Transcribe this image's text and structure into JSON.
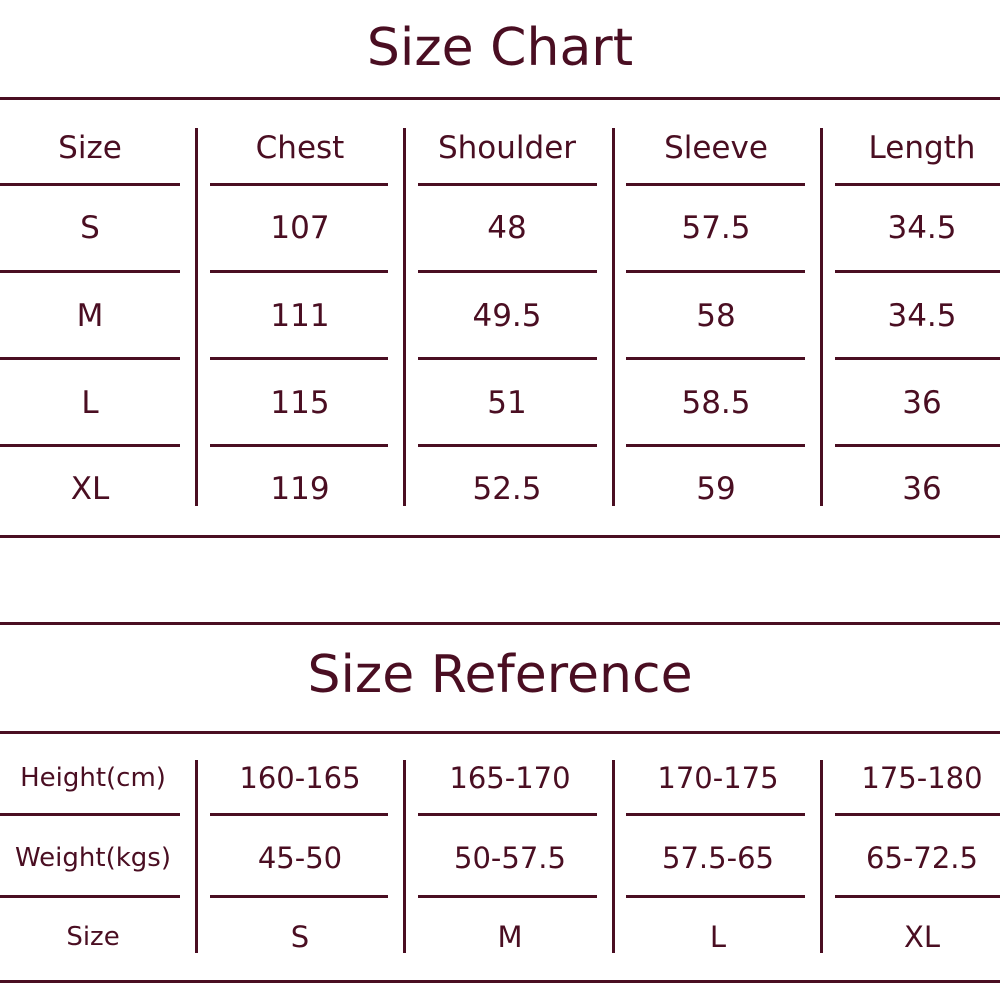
{
  "size_chart": {
    "title": "Size Chart",
    "headers": [
      "Size",
      "Chest",
      "Shoulder",
      "Sleeve",
      "Length"
    ],
    "rows": [
      [
        "S",
        "107",
        "48",
        "57.5",
        "34.5"
      ],
      [
        "M",
        "111",
        "49.5",
        "58",
        "34.5"
      ],
      [
        "L",
        "115",
        "51",
        "58.5",
        "36"
      ],
      [
        "XL",
        "119",
        "52.5",
        "59",
        "36"
      ]
    ]
  },
  "size_reference": {
    "title": "Size Reference",
    "rows": [
      [
        "Height(cm)",
        "160-165",
        "165-170",
        "170-175",
        "175-180"
      ],
      [
        "Weight(kgs)",
        "45-50",
        "50-57.5",
        "57.5-65",
        "65-72.5"
      ],
      [
        "Size",
        "S",
        "M",
        "L",
        "XL"
      ]
    ]
  },
  "colors": {
    "text": "#4a0e22",
    "background": "#ffffff"
  }
}
